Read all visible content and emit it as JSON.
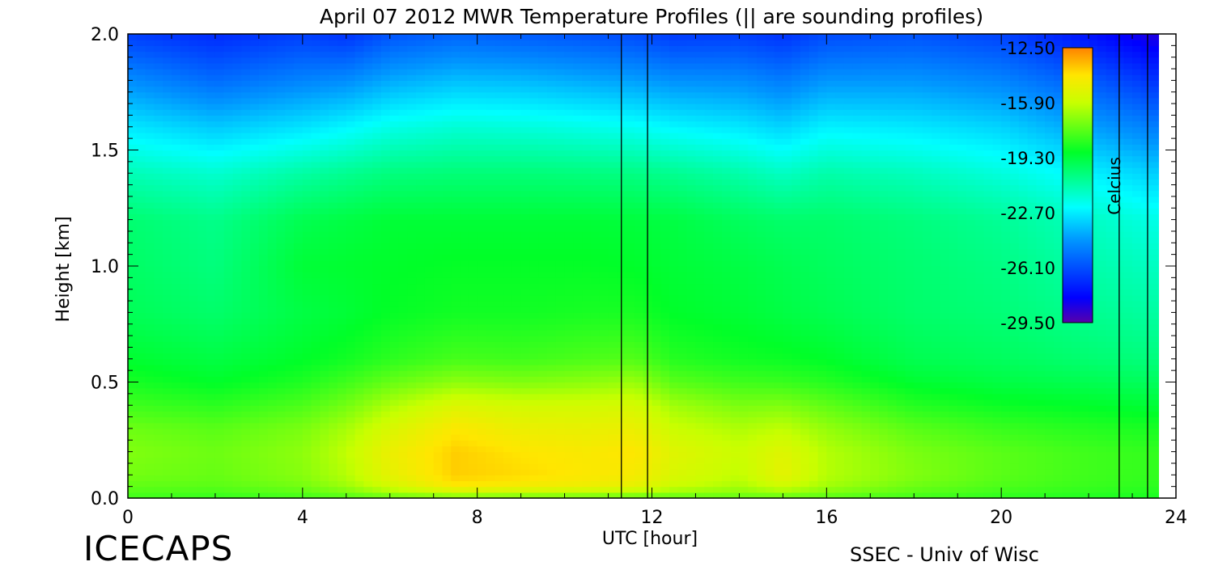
{
  "chart_data": {
    "type": "heatmap",
    "title": "April 07 2012 MWR Temperature Profiles (|| are sounding profiles)",
    "xlabel": "UTC [hour]",
    "ylabel": "Height [km]",
    "xlim": [
      0,
      24
    ],
    "ylim": [
      0,
      2.0
    ],
    "x_ticks": [
      "0",
      "4",
      "8",
      "12",
      "16",
      "20",
      "24"
    ],
    "y_ticks": [
      "0.0",
      "0.5",
      "1.0",
      "1.5",
      "2.0"
    ],
    "colorbar": {
      "label": "Celcius",
      "ticks": [
        "-12.50",
        "-15.90",
        "-19.30",
        "-22.70",
        "-26.10",
        "-29.50"
      ],
      "range": [
        -29.5,
        -12.5
      ]
    },
    "data_end_hour": 23.6,
    "sounding_profiles_utc": [
      11.3,
      11.9,
      22.7,
      23.35
    ],
    "heights_km": [
      0.0,
      0.05,
      0.1,
      0.2,
      0.3,
      0.4,
      0.5,
      0.6,
      0.8,
      1.0,
      1.2,
      1.4,
      1.6,
      1.8,
      2.0
    ],
    "temperature_profiles": [
      {
        "hour": 0,
        "temps": [
          -18.0,
          -17.5,
          -17.2,
          -17.0,
          -17.3,
          -18.0,
          -18.6,
          -19.1,
          -19.7,
          -19.9,
          -20.1,
          -21.2,
          -22.8,
          -24.6,
          -26.5
        ]
      },
      {
        "hour": 2,
        "temps": [
          -18.2,
          -17.6,
          -17.4,
          -17.3,
          -17.6,
          -18.3,
          -19.0,
          -19.4,
          -20.0,
          -20.3,
          -20.5,
          -21.6,
          -23.4,
          -25.4,
          -27.0
        ]
      },
      {
        "hour": 4,
        "temps": [
          -18.0,
          -17.2,
          -16.9,
          -16.8,
          -17.1,
          -17.8,
          -18.5,
          -19.0,
          -19.4,
          -19.2,
          -19.6,
          -20.9,
          -22.9,
          -24.8,
          -26.5
        ]
      },
      {
        "hour": 5,
        "temps": [
          -17.8,
          -16.6,
          -16.2,
          -16.0,
          -16.4,
          -17.2,
          -18.0,
          -18.7,
          -19.2,
          -19.1,
          -19.4,
          -20.6,
          -22.5,
          -24.6,
          -26.8
        ]
      },
      {
        "hour": 6,
        "temps": [
          -17.5,
          -15.6,
          -15.0,
          -14.8,
          -15.4,
          -16.3,
          -17.4,
          -18.3,
          -18.9,
          -19.0,
          -19.2,
          -20.3,
          -22.0,
          -24.0,
          -26.0
        ]
      },
      {
        "hour": 7.5,
        "temps": [
          -17.3,
          -14.3,
          -13.8,
          -13.8,
          -14.3,
          -15.3,
          -16.8,
          -17.9,
          -18.7,
          -18.9,
          -19.2,
          -20.2,
          -21.7,
          -23.6,
          -25.6
        ]
      },
      {
        "hour": 9,
        "temps": [
          -17.4,
          -14.6,
          -14.0,
          -14.2,
          -14.8,
          -15.6,
          -17.0,
          -18.0,
          -18.7,
          -18.9,
          -19.2,
          -20.2,
          -21.8,
          -23.7,
          -25.8
        ]
      },
      {
        "hour": 10.5,
        "temps": [
          -17.5,
          -14.8,
          -14.3,
          -14.4,
          -14.9,
          -15.6,
          -16.8,
          -17.8,
          -18.6,
          -18.9,
          -19.2,
          -20.3,
          -22.0,
          -24.0,
          -26.0
        ]
      },
      {
        "hour": 11.6,
        "temps": [
          -17.6,
          -15.0,
          -14.5,
          -14.2,
          -14.8,
          -15.5,
          -16.6,
          -17.7,
          -18.6,
          -19.0,
          -19.3,
          -20.4,
          -22.2,
          -24.2,
          -26.2
        ]
      },
      {
        "hour": 12.5,
        "temps": [
          -17.6,
          -15.8,
          -15.4,
          -15.2,
          -15.8,
          -16.5,
          -17.6,
          -18.4,
          -19.0,
          -19.2,
          -19.4,
          -20.6,
          -22.5,
          -24.5,
          -26.6
        ]
      },
      {
        "hour": 14,
        "temps": [
          -17.5,
          -16.4,
          -16.0,
          -15.8,
          -16.3,
          -17.1,
          -18.0,
          -18.7,
          -19.2,
          -19.4,
          -19.8,
          -21.0,
          -22.8,
          -24.6,
          -26.5
        ]
      },
      {
        "hour": 15,
        "temps": [
          -17.6,
          -15.7,
          -15.0,
          -15.2,
          -16.0,
          -17.0,
          -18.1,
          -18.8,
          -19.4,
          -19.6,
          -20.0,
          -21.4,
          -23.2,
          -25.0,
          -26.8
        ]
      },
      {
        "hour": 16,
        "temps": [
          -17.7,
          -16.5,
          -16.2,
          -16.2,
          -16.7,
          -17.5,
          -18.4,
          -19.0,
          -19.6,
          -19.8,
          -20.0,
          -21.0,
          -22.6,
          -24.4,
          -26.2
        ]
      },
      {
        "hour": 18,
        "temps": [
          -18.0,
          -17.3,
          -17.0,
          -17.1,
          -17.6,
          -18.4,
          -19.1,
          -19.6,
          -20.0,
          -20.1,
          -20.3,
          -21.3,
          -22.8,
          -24.4,
          -26.0
        ]
      },
      {
        "hour": 20,
        "temps": [
          -18.3,
          -17.8,
          -17.6,
          -17.6,
          -18.1,
          -18.8,
          -19.4,
          -19.8,
          -20.2,
          -20.4,
          -20.7,
          -21.8,
          -23.2,
          -24.8,
          -26.4
        ]
      },
      {
        "hour": 22,
        "temps": [
          -18.5,
          -18.1,
          -18.0,
          -18.0,
          -18.4,
          -19.0,
          -19.6,
          -20.1,
          -20.6,
          -21.0,
          -21.4,
          -22.6,
          -24.2,
          -25.8,
          -27.6
        ]
      },
      {
        "hour": 23.6,
        "temps": [
          -18.6,
          -18.3,
          -18.2,
          -18.2,
          -18.6,
          -19.2,
          -19.8,
          -20.3,
          -20.9,
          -21.4,
          -22.0,
          -23.3,
          -25.0,
          -26.8,
          -28.6
        ]
      }
    ]
  },
  "footer": {
    "left_label": "ICECAPS",
    "right_label": "SSEC - Univ of Wisc"
  }
}
